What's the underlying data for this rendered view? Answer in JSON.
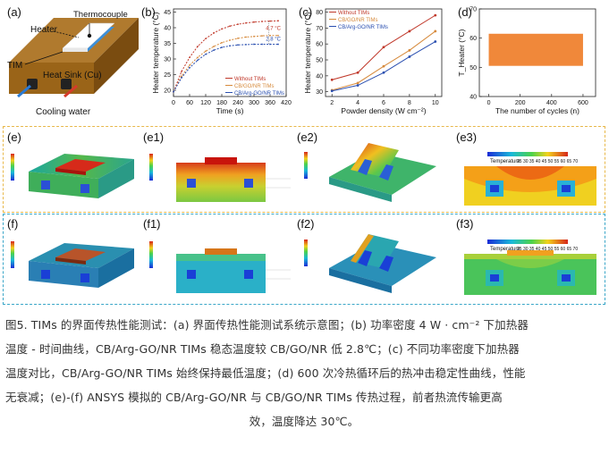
{
  "panels": {
    "a": "(a)",
    "b": "(b)",
    "c": "(c)",
    "d": "(d)",
    "e": "(e)",
    "e1": "(e1)",
    "e2": "(e2)",
    "e3": "(e3)",
    "f": "(f)",
    "f1": "(f1)",
    "f2": "(f2)",
    "f3": "(f3)"
  },
  "schematic": {
    "heater": "Heater",
    "thermocouple": "Thermocouple",
    "tim": "TIM",
    "heat_sink": "Heat Sink (Cu)",
    "cooling_water": "Cooling water"
  },
  "sim": {
    "temperature_label": "Temperature",
    "scale_ticks": "25 30 35 40 45 50 55 60 65 70"
  },
  "chart_data": [
    {
      "type": "line",
      "panel": "b",
      "xlabel": "Time (s)",
      "ylabel": "Heater temperature (°C)",
      "xlim": [
        0,
        420
      ],
      "ylim": [
        18,
        46
      ],
      "xticks": [
        0,
        60,
        120,
        180,
        240,
        300,
        360,
        420
      ],
      "yticks": [
        20,
        25,
        30,
        35,
        40,
        45
      ],
      "annotations": [
        "4.7 °C",
        "2.8 °C"
      ],
      "legend": "bottom-right",
      "series": [
        {
          "name": "Without TIMs",
          "color": "#c0392b",
          "x": [
            0,
            30,
            60,
            90,
            120,
            150,
            180,
            210,
            240,
            270,
            300,
            330,
            360,
            390
          ],
          "y": [
            19.5,
            26,
            30.5,
            34,
            36.5,
            38.3,
            39.6,
            40.5,
            41.1,
            41.5,
            41.8,
            42,
            42.1,
            42.2
          ]
        },
        {
          "name": "CB/GO/NR TIMs",
          "color": "#d68a3c",
          "x": [
            0,
            30,
            60,
            90,
            120,
            150,
            180,
            210,
            240,
            270,
            300,
            330,
            360,
            390
          ],
          "y": [
            19.5,
            24.5,
            28,
            30.5,
            32.5,
            34,
            35.2,
            36,
            36.6,
            37,
            37.2,
            37.4,
            37.5,
            37.5
          ]
        },
        {
          "name": "CB/Arg-GO/NR TIMs",
          "color": "#2a4fb0",
          "x": [
            0,
            30,
            60,
            90,
            120,
            150,
            180,
            210,
            240,
            270,
            300,
            330,
            360,
            390
          ],
          "y": [
            19.5,
            24,
            27.2,
            29.6,
            31.5,
            32.8,
            33.7,
            34.2,
            34.5,
            34.6,
            34.7,
            34.7,
            34.7,
            34.7
          ]
        }
      ]
    },
    {
      "type": "line",
      "panel": "c",
      "xlabel": "Powder density (W cm⁻²)",
      "ylabel": "Heater temperature (°C)",
      "xlim": [
        1.5,
        10.5
      ],
      "ylim": [
        27,
        82
      ],
      "xticks": [
        2,
        4,
        6,
        8,
        10
      ],
      "yticks": [
        30,
        40,
        50,
        60,
        70,
        80
      ],
      "legend": "top-left",
      "series": [
        {
          "name": "Without TIMs",
          "color": "#c0392b",
          "x": [
            2,
            4,
            6,
            8,
            10
          ],
          "y": [
            37.5,
            42,
            58,
            68,
            78
          ]
        },
        {
          "name": "CB/GO/NR TIMs",
          "color": "#d68a3c",
          "x": [
            2,
            4,
            6,
            8,
            10
          ],
          "y": [
            31,
            35.5,
            46,
            56,
            68
          ]
        },
        {
          "name": "CB/Arg-GO/NR TIMs",
          "color": "#2a4fb0",
          "x": [
            2,
            4,
            6,
            8,
            10
          ],
          "y": [
            30.5,
            34,
            42,
            52,
            61.5
          ]
        }
      ]
    },
    {
      "type": "area",
      "panel": "d",
      "xlabel": "The number of cycles (n)",
      "ylabel": "T_Heater (°C)",
      "xlim": [
        -60,
        680
      ],
      "ylim": [
        40,
        70
      ],
      "xticks": [
        0,
        200,
        400,
        600
      ],
      "yticks": [
        40,
        50,
        60,
        70
      ],
      "band": {
        "x0": 0,
        "x1": 600,
        "y_low": 50.5,
        "y_high": 61.5,
        "color": "#f0883a"
      }
    }
  ],
  "caption": {
    "line1": "图5. TIMs 的界面传热性能测试：(a) 界面传热性能测试系统示意图；(b) 功率密度 4 W · cm⁻² 下加热器",
    "line2": "温度 - 时间曲线，CB/Arg-GO/NR TIMs 稳态温度较 CB/GO/NR 低 2.8℃；(c) 不同功率密度下加热器",
    "line3": "温度对比，CB/Arg-GO/NR TIMs 始终保持最低温度；(d) 600 次冷热循环后的热冲击稳定性曲线，性能",
    "line4": "无衰减；(e)-(f) ANSYS 模拟的 CB/Arg-GO/NR 与 CB/GO/NR TIMs 传热过程，前者热流传输更高",
    "line5": "效，温度降达 30℃。"
  }
}
